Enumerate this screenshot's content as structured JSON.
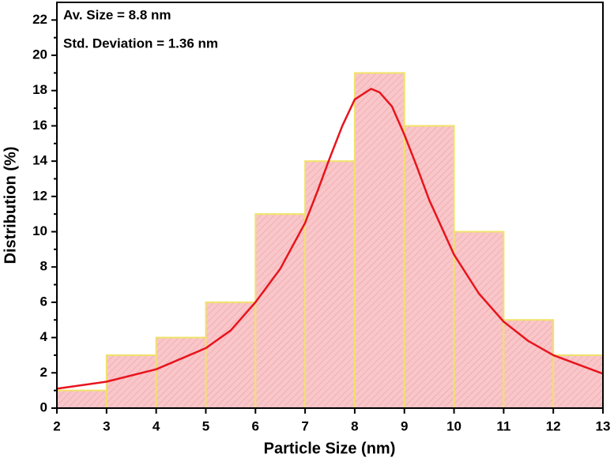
{
  "chart_data": {
    "type": "histogram",
    "xlabel": "Particle Size (nm)",
    "ylabel": "Distribution (%)",
    "annotations": [
      "Av. Size = 8.8 nm",
      "Std. Deviation = 1.36 nm"
    ],
    "bins": [
      2,
      3,
      4,
      5,
      6,
      7,
      8,
      9,
      10,
      11,
      12,
      13
    ],
    "values": [
      1,
      3,
      4,
      6,
      11,
      14,
      19,
      16,
      10,
      5,
      3
    ],
    "color": "#f9c6c9",
    "edge_color": "#f0e26a",
    "fit": {
      "color": "#e8141c",
      "x": [
        2,
        3,
        4,
        5,
        5.5,
        6,
        6.5,
        7,
        7.25,
        7.5,
        7.75,
        8,
        8.33,
        8.5,
        8.75,
        9,
        9.25,
        9.5,
        10,
        10.5,
        11,
        11.5,
        12,
        13
      ],
      "values": [
        1.1,
        1.5,
        2.2,
        3.4,
        4.4,
        6.0,
        7.9,
        10.5,
        12.3,
        14.2,
        16.0,
        17.5,
        18.1,
        17.9,
        17.1,
        15.5,
        13.7,
        11.8,
        8.7,
        6.5,
        4.9,
        3.8,
        3.0,
        1.95
      ]
    },
    "xlim": [
      2,
      13
    ],
    "ylim": [
      0,
      23
    ],
    "xticks": [
      2,
      3,
      4,
      5,
      6,
      7,
      8,
      9,
      10,
      11,
      12,
      13
    ],
    "yticks": [
      0,
      2,
      4,
      6,
      8,
      10,
      12,
      14,
      16,
      18,
      20,
      22
    ],
    "yminorticks": [
      1,
      3,
      5,
      7,
      9,
      11,
      13,
      15,
      17,
      19,
      21
    ]
  }
}
